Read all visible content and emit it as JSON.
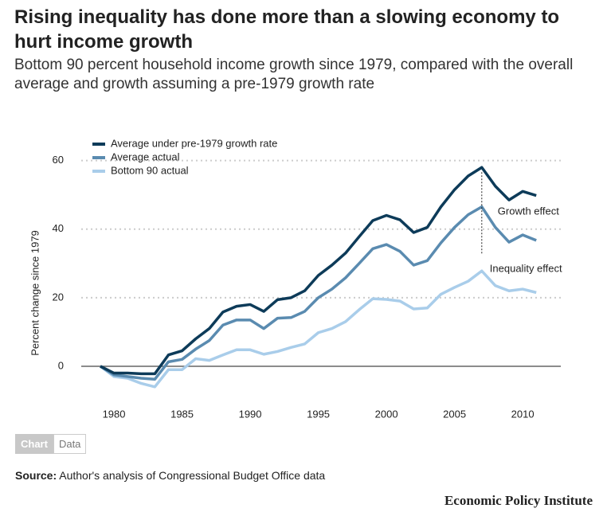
{
  "chart_data": {
    "type": "line",
    "title": "Rising inequality has done more than a slowing economy to hurt income growth",
    "subtitle": "Bottom 90 percent household income growth since 1979, compared with the overall average and growth assuming a pre-1979 growth rate",
    "ylabel": "Percent change since 1979",
    "x": [
      1979,
      1980,
      1981,
      1982,
      1983,
      1984,
      1985,
      1986,
      1987,
      1988,
      1989,
      1990,
      1991,
      1992,
      1993,
      1994,
      1995,
      1996,
      1997,
      1998,
      1999,
      2000,
      2001,
      2002,
      2003,
      2004,
      2005,
      2006,
      2007,
      2008,
      2009,
      2010,
      2011
    ],
    "series": [
      {
        "name": "Average under pre-1979 growth rate",
        "color": "#0d3b59",
        "values": [
          0,
          -2,
          -2,
          -2.2,
          -2.2,
          3.3,
          4.5,
          8,
          11,
          15.8,
          17.5,
          18,
          16,
          19.4,
          20,
          22,
          26.5,
          29.5,
          33,
          37.8,
          42.5,
          44,
          42.7,
          39,
          40.5,
          46.5,
          51.5,
          55.5,
          58,
          52.5,
          48.5,
          51,
          49.8
        ]
      },
      {
        "name": "Average actual",
        "color": "#5a8bb0",
        "values": [
          0,
          -2.5,
          -3,
          -3.5,
          -3.8,
          1.3,
          2,
          5,
          7.5,
          12,
          13.5,
          13.5,
          11,
          14,
          14.2,
          16,
          20,
          22.5,
          25.8,
          30,
          34.3,
          35.5,
          33.5,
          29.5,
          30.8,
          36,
          40.5,
          44.2,
          46.5,
          40.5,
          36.2,
          38.3,
          36.7
        ]
      },
      {
        "name": "Bottom 90 actual",
        "color": "#a9cdea",
        "values": [
          0,
          -3,
          -3.5,
          -5,
          -6,
          -1,
          -1,
          2.2,
          1.7,
          3.3,
          4.8,
          4.8,
          3.5,
          4.3,
          5.5,
          6.5,
          9.8,
          11,
          13,
          16.5,
          19.7,
          19.5,
          19,
          16.7,
          17,
          21,
          23,
          24.8,
          27.8,
          23.5,
          22,
          22.5,
          21.5
        ]
      }
    ],
    "annotations": [
      "Growth effect",
      "Inequality effect"
    ],
    "xlim": [
      1977.6,
      2012.8
    ],
    "xticks": [
      1980,
      1985,
      1990,
      1995,
      2000,
      2005,
      2010
    ],
    "ylim": [
      -10,
      62
    ],
    "yticks": [
      0,
      20,
      40,
      60
    ],
    "grid": true,
    "legend": "top-left"
  },
  "tabs": [
    "Chart",
    "Data"
  ],
  "source": {
    "label": "Source:",
    "text": "Author's analysis of Congressional Budget Office data"
  },
  "publisher": "Economic Policy Institute"
}
